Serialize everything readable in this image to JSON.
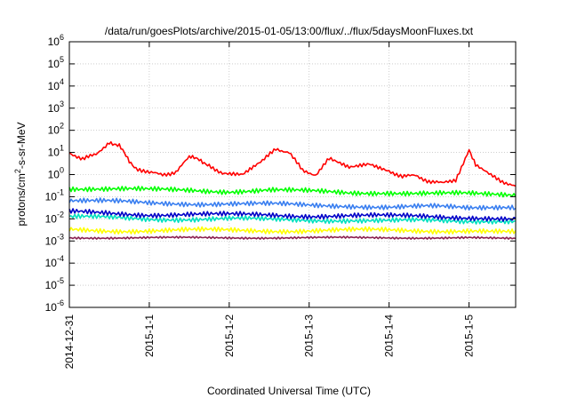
{
  "chart_data": {
    "type": "line",
    "title": "/data/run/goesPlots/archive/2015-01-05/13:00/flux/../flux/5daysMoonFluxes.txt",
    "xlabel": "Coordinated Universal Time (UTC)",
    "ylabel": {
      "base": "protons/cm",
      "sup": "2",
      "rest": "-s-sr-MeV"
    },
    "y_scale": "log",
    "ylim_exponent": [
      -6,
      6
    ],
    "y_tick_base": "10",
    "y_tick_exponents": [
      "6",
      "5",
      "4",
      "3",
      "2",
      "1",
      "0",
      "-1",
      "-2",
      "-3",
      "-4",
      "-5",
      "-6"
    ],
    "x_domain": [
      "2014-12-31",
      "2015-01-05 14:00"
    ],
    "x_ticks": [
      "2014-12-31",
      "2015-1-1",
      "2015-1-2",
      "2015-1-3",
      "2015-1-4",
      "2015-1-5"
    ],
    "grid": true,
    "legend": "none",
    "series": [
      {
        "color": "#ff0000",
        "x": [
          "2014-12-31 00:00",
          "2014-12-31 04:00",
          "2014-12-31 08:00",
          "2014-12-31 12:00",
          "2014-12-31 15:00",
          "2014-12-31 18:00",
          "2014-12-31 20:00",
          "2015-01-01 00:00",
          "2015-01-01 04:00",
          "2015-01-01 08:00",
          "2015-01-01 12:00",
          "2015-01-01 15:00",
          "2015-01-01 18:00",
          "2015-01-01 22:00",
          "2015-01-02 04:00",
          "2015-01-02 10:00",
          "2015-01-02 14:00",
          "2015-01-02 18:00",
          "2015-01-02 22:00",
          "2015-01-03 02:00",
          "2015-01-03 06:00",
          "2015-01-03 12:00",
          "2015-01-03 18:00",
          "2015-01-04 00:00",
          "2015-01-04 04:00",
          "2015-01-04 08:00",
          "2015-01-04 12:00",
          "2015-01-04 16:00",
          "2015-01-04 20:00",
          "2015-01-05 00:00",
          "2015-01-05 02:00",
          "2015-01-05 06:00",
          "2015-01-05 10:00",
          "2015-01-05 14:00"
        ],
        "y": [
          10,
          5,
          8,
          30,
          20,
          4,
          2,
          1.2,
          1.0,
          1.3,
          6,
          5,
          2.5,
          1.2,
          1.0,
          4,
          15,
          10,
          1.5,
          1.0,
          5,
          2,
          3,
          1.5,
          0.8,
          0.9,
          0.5,
          0.4,
          0.6,
          12,
          3,
          1.0,
          0.5,
          0.3
        ]
      },
      {
        "color": "#00ff00",
        "x": [
          "2014-12-31 00:00",
          "2014-12-31 12:00",
          "2015-01-01 00:00",
          "2015-01-01 12:00",
          "2015-01-02 00:00",
          "2015-01-02 12:00",
          "2015-01-03 00:00",
          "2015-01-03 12:00",
          "2015-01-04 00:00",
          "2015-01-04 12:00",
          "2015-01-05 00:00",
          "2015-01-05 14:00"
        ],
        "y": [
          0.25,
          0.22,
          0.2,
          0.2,
          0.18,
          0.2,
          0.17,
          0.15,
          0.16,
          0.14,
          0.13,
          0.1
        ]
      },
      {
        "color": "#3a7ff0",
        "x": [
          "2014-12-31 00:00",
          "2014-12-31 12:00",
          "2015-01-01 00:00",
          "2015-01-01 12:00",
          "2015-01-02 00:00",
          "2015-01-02 12:00",
          "2015-01-03 00:00",
          "2015-01-03 12:00",
          "2015-01-04 00:00",
          "2015-01-04 12:00",
          "2015-01-05 00:00",
          "2015-01-05 14:00"
        ],
        "y": [
          0.07,
          0.06,
          0.05,
          0.05,
          0.05,
          0.045,
          0.04,
          0.04,
          0.035,
          0.035,
          0.03,
          0.03
        ]
      },
      {
        "color": "#00e0c0",
        "x": [
          "2014-12-31 00:00",
          "2014-12-31 12:00",
          "2015-01-01 00:00",
          "2015-01-01 12:00",
          "2015-01-02 00:00",
          "2015-01-02 12:00",
          "2015-01-03 00:00",
          "2015-01-03 12:00",
          "2015-01-04 00:00",
          "2015-01-04 12:00",
          "2015-01-05 00:00",
          "2015-01-05 14:00"
        ],
        "y": [
          0.012,
          0.011,
          0.01,
          0.01,
          0.01,
          0.009,
          0.009,
          0.009,
          0.008,
          0.008,
          0.008,
          0.008
        ]
      },
      {
        "color": "#0000c8",
        "x": [
          "2014-12-31 00:00",
          "2014-12-31 12:00",
          "2015-01-01 00:00",
          "2015-01-01 12:00",
          "2015-01-02 00:00",
          "2015-01-02 12:00",
          "2015-01-03 00:00",
          "2015-01-03 12:00",
          "2015-01-04 00:00",
          "2015-01-04 12:00",
          "2015-01-05 00:00",
          "2015-01-05 14:00"
        ],
        "y": [
          0.02,
          0.018,
          0.016,
          0.016,
          0.015,
          0.015,
          0.014,
          0.014,
          0.013,
          0.013,
          0.012,
          0.011
        ]
      },
      {
        "color": "#ffff00",
        "x": [
          "2014-12-31 00:00",
          "2014-12-31 12:00",
          "2015-01-01 00:00",
          "2015-01-01 12:00",
          "2015-01-02 00:00",
          "2015-01-02 12:00",
          "2015-01-03 00:00",
          "2015-01-03 12:00",
          "2015-01-04 00:00",
          "2015-01-04 12:00",
          "2015-01-05 00:00",
          "2015-01-05 14:00"
        ],
        "y": [
          0.0032,
          0.003,
          0.003,
          0.003,
          0.003,
          0.003,
          0.003,
          0.003,
          0.003,
          0.003,
          0.003,
          0.003
        ]
      },
      {
        "color": "#8b2050",
        "x": [
          "2014-12-31 00:00",
          "2014-12-31 12:00",
          "2015-01-01 00:00",
          "2015-01-01 12:00",
          "2015-01-02 00:00",
          "2015-01-02 12:00",
          "2015-01-03 00:00",
          "2015-01-03 12:00",
          "2015-01-04 00:00",
          "2015-01-04 12:00",
          "2015-01-05 00:00",
          "2015-01-05 14:00"
        ],
        "y": [
          0.0014,
          0.0014,
          0.0014,
          0.0014,
          0.0014,
          0.0014,
          0.0014,
          0.0014,
          0.0014,
          0.0014,
          0.0014,
          0.0013
        ]
      }
    ]
  }
}
